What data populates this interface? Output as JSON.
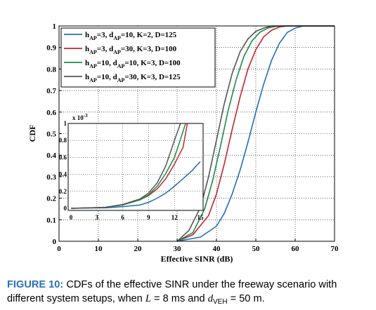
{
  "chart_data": [
    {
      "type": "line",
      "xlabel": "Effective SINR (dB)",
      "ylabel": "CDF",
      "xlim": [
        0,
        70
      ],
      "ylim": [
        0,
        1
      ],
      "xticks": [
        0,
        10,
        20,
        30,
        40,
        50,
        60,
        70
      ],
      "yticks": [
        0,
        0.1,
        0.2,
        0.3,
        0.4,
        0.5,
        0.6,
        0.7,
        0.8,
        0.9,
        1
      ],
      "grid": true,
      "legend_position": "top-left",
      "series": [
        {
          "name": "h_AP=3, d_AP=10, K=2, D=125",
          "color": "#1f6fc0",
          "x": [
            30,
            36,
            40,
            42,
            44,
            46,
            48,
            50,
            52,
            54,
            56,
            58,
            60,
            62,
            70
          ],
          "y": [
            0,
            0.02,
            0.07,
            0.13,
            0.22,
            0.33,
            0.46,
            0.6,
            0.73,
            0.84,
            0.92,
            0.97,
            0.99,
            1.0,
            1.0
          ]
        },
        {
          "name": "h_AP=3, d_AP=30, K=3, D=100",
          "color": "#c1272d",
          "x": [
            30,
            34,
            38,
            40,
            42,
            44,
            46,
            48,
            50,
            52,
            54,
            56,
            58,
            70
          ],
          "y": [
            0,
            0.03,
            0.12,
            0.22,
            0.36,
            0.52,
            0.67,
            0.8,
            0.89,
            0.95,
            0.98,
            0.995,
            1.0,
            1.0
          ]
        },
        {
          "name": "h_AP=10, d_AP=10, K=3, D=100",
          "color": "#1d8a4a",
          "x": [
            30,
            34,
            37,
            39,
            41,
            43,
            45,
            47,
            49,
            51,
            53,
            55,
            57,
            70
          ],
          "y": [
            0,
            0.04,
            0.15,
            0.28,
            0.44,
            0.61,
            0.75,
            0.86,
            0.93,
            0.97,
            0.99,
            0.998,
            1.0,
            1.0
          ]
        },
        {
          "name": "h_AP=10, d_AP=30, K=3, D=125",
          "color": "#555555",
          "x": [
            30,
            33,
            36,
            38,
            40,
            42,
            44,
            46,
            48,
            50,
            52,
            54,
            70
          ],
          "y": [
            0,
            0.05,
            0.16,
            0.3,
            0.47,
            0.64,
            0.78,
            0.88,
            0.94,
            0.975,
            0.99,
            1.0,
            1.0
          ]
        }
      ],
      "legend_labels": [
        {
          "h1": "h",
          "s1": "AP",
          "t1": "=3, d",
          "s2": "AP",
          "t2": "=10, K=2, D=125"
        },
        {
          "h1": "h",
          "s1": "AP",
          "t1": "=3, d",
          "s2": "AP",
          "t2": "=30, K=3, D=100"
        },
        {
          "h1": "h",
          "s1": "AP",
          "t1": "=10, d",
          "s2": "AP",
          "t2": "=10, K=3, D=100"
        },
        {
          "h1": "h",
          "s1": "AP",
          "t1": "=10, d",
          "s2": "AP",
          "t2": "=30, K=3, D=125"
        }
      ]
    },
    {
      "type": "line",
      "note_scale": "x 10",
      "scale_exponent": "-3",
      "xlim": [
        0,
        15
      ],
      "ylim": [
        0,
        1
      ],
      "xticks": [
        0,
        3,
        6,
        9,
        12,
        15
      ],
      "yticks": [
        0,
        0.2,
        0.4,
        0.6,
        0.8,
        1
      ],
      "grid": true,
      "series": [
        {
          "color": "#1f6fc0",
          "x": [
            0,
            4,
            6,
            8,
            9,
            10,
            11,
            12,
            13,
            14,
            15
          ],
          "y": [
            0,
            0.005,
            0.02,
            0.04,
            0.07,
            0.12,
            0.18,
            0.26,
            0.35,
            0.44,
            0.55
          ]
        },
        {
          "color": "#c1272d",
          "x": [
            0,
            4,
            6,
            8,
            9,
            10,
            11,
            12,
            13,
            13.5
          ],
          "y": [
            0,
            0.01,
            0.04,
            0.1,
            0.15,
            0.23,
            0.35,
            0.52,
            0.72,
            1.0
          ]
        },
        {
          "color": "#1d8a4a",
          "x": [
            0,
            4,
            6,
            8,
            9,
            10,
            11,
            12,
            12.5,
            13.3
          ],
          "y": [
            0,
            0.01,
            0.04,
            0.1,
            0.16,
            0.26,
            0.41,
            0.6,
            0.75,
            1.0
          ]
        },
        {
          "color": "#555555",
          "x": [
            0,
            4,
            6,
            8,
            9,
            10,
            11,
            11.5,
            12,
            12.7
          ],
          "y": [
            0,
            0.012,
            0.045,
            0.11,
            0.18,
            0.3,
            0.5,
            0.65,
            0.8,
            1.0
          ]
        }
      ]
    }
  ],
  "caption": {
    "label": "FIGURE 10:",
    "text_1": " CDFs of the effective SINR under the freeway scenario with different system setups, when ",
    "L_sym": "L",
    "L_val": " = 8 ms and ",
    "d_sym": "d",
    "d_sub": "VEH",
    "d_val": " = 50 m."
  }
}
